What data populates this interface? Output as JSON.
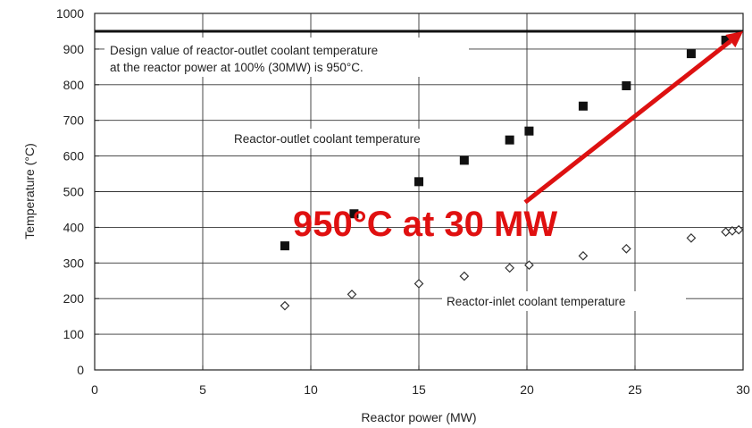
{
  "chart_data": {
    "type": "scatter",
    "title": "",
    "xlabel": "Reactor power (MW)",
    "ylabel": "Temperature (°C)",
    "xlim": [
      0,
      30
    ],
    "ylim": [
      0,
      1000
    ],
    "xticks": [
      "0",
      "5",
      "10",
      "15",
      "20",
      "25",
      "30"
    ],
    "yticks": [
      "0",
      "100",
      "200",
      "300",
      "400",
      "500",
      "600",
      "700",
      "800",
      "900",
      "1000"
    ],
    "grid": true,
    "series": [
      {
        "name": "Reactor-outlet coolant temperature",
        "marker": "square",
        "color": "#111111",
        "x": [
          8.8,
          12.0,
          15.0,
          17.1,
          19.2,
          20.1,
          22.6,
          24.6,
          27.6,
          29.2
        ],
        "y": [
          348,
          438,
          528,
          588,
          645,
          670,
          740,
          797,
          887,
          925
        ]
      },
      {
        "name": "Reactor-inlet coolant temperature",
        "marker": "diamond",
        "color": "#888888",
        "x": [
          8.8,
          11.9,
          15.0,
          17.1,
          19.2,
          20.1,
          22.6,
          24.6,
          27.6,
          29.2,
          29.5,
          29.8
        ],
        "y": [
          180,
          212,
          242,
          263,
          286,
          294,
          320,
          340,
          370,
          387,
          390,
          393
        ]
      }
    ],
    "reference_line": {
      "y": 950,
      "color": "#111111"
    },
    "annotations": {
      "design_line1": "Design value of reactor-outlet coolant temperature",
      "design_line2": "at the reactor power at 100% (30MW) is 950°C.",
      "outlet_label": "Reactor-outlet coolant temperature",
      "inlet_label": "Reactor-inlet coolant temperature",
      "callout": "950°C at 30 MW"
    },
    "arrow": {
      "from": [
        20.0,
        470
      ],
      "to": [
        30.0,
        950
      ],
      "color": "#dd1111"
    }
  }
}
